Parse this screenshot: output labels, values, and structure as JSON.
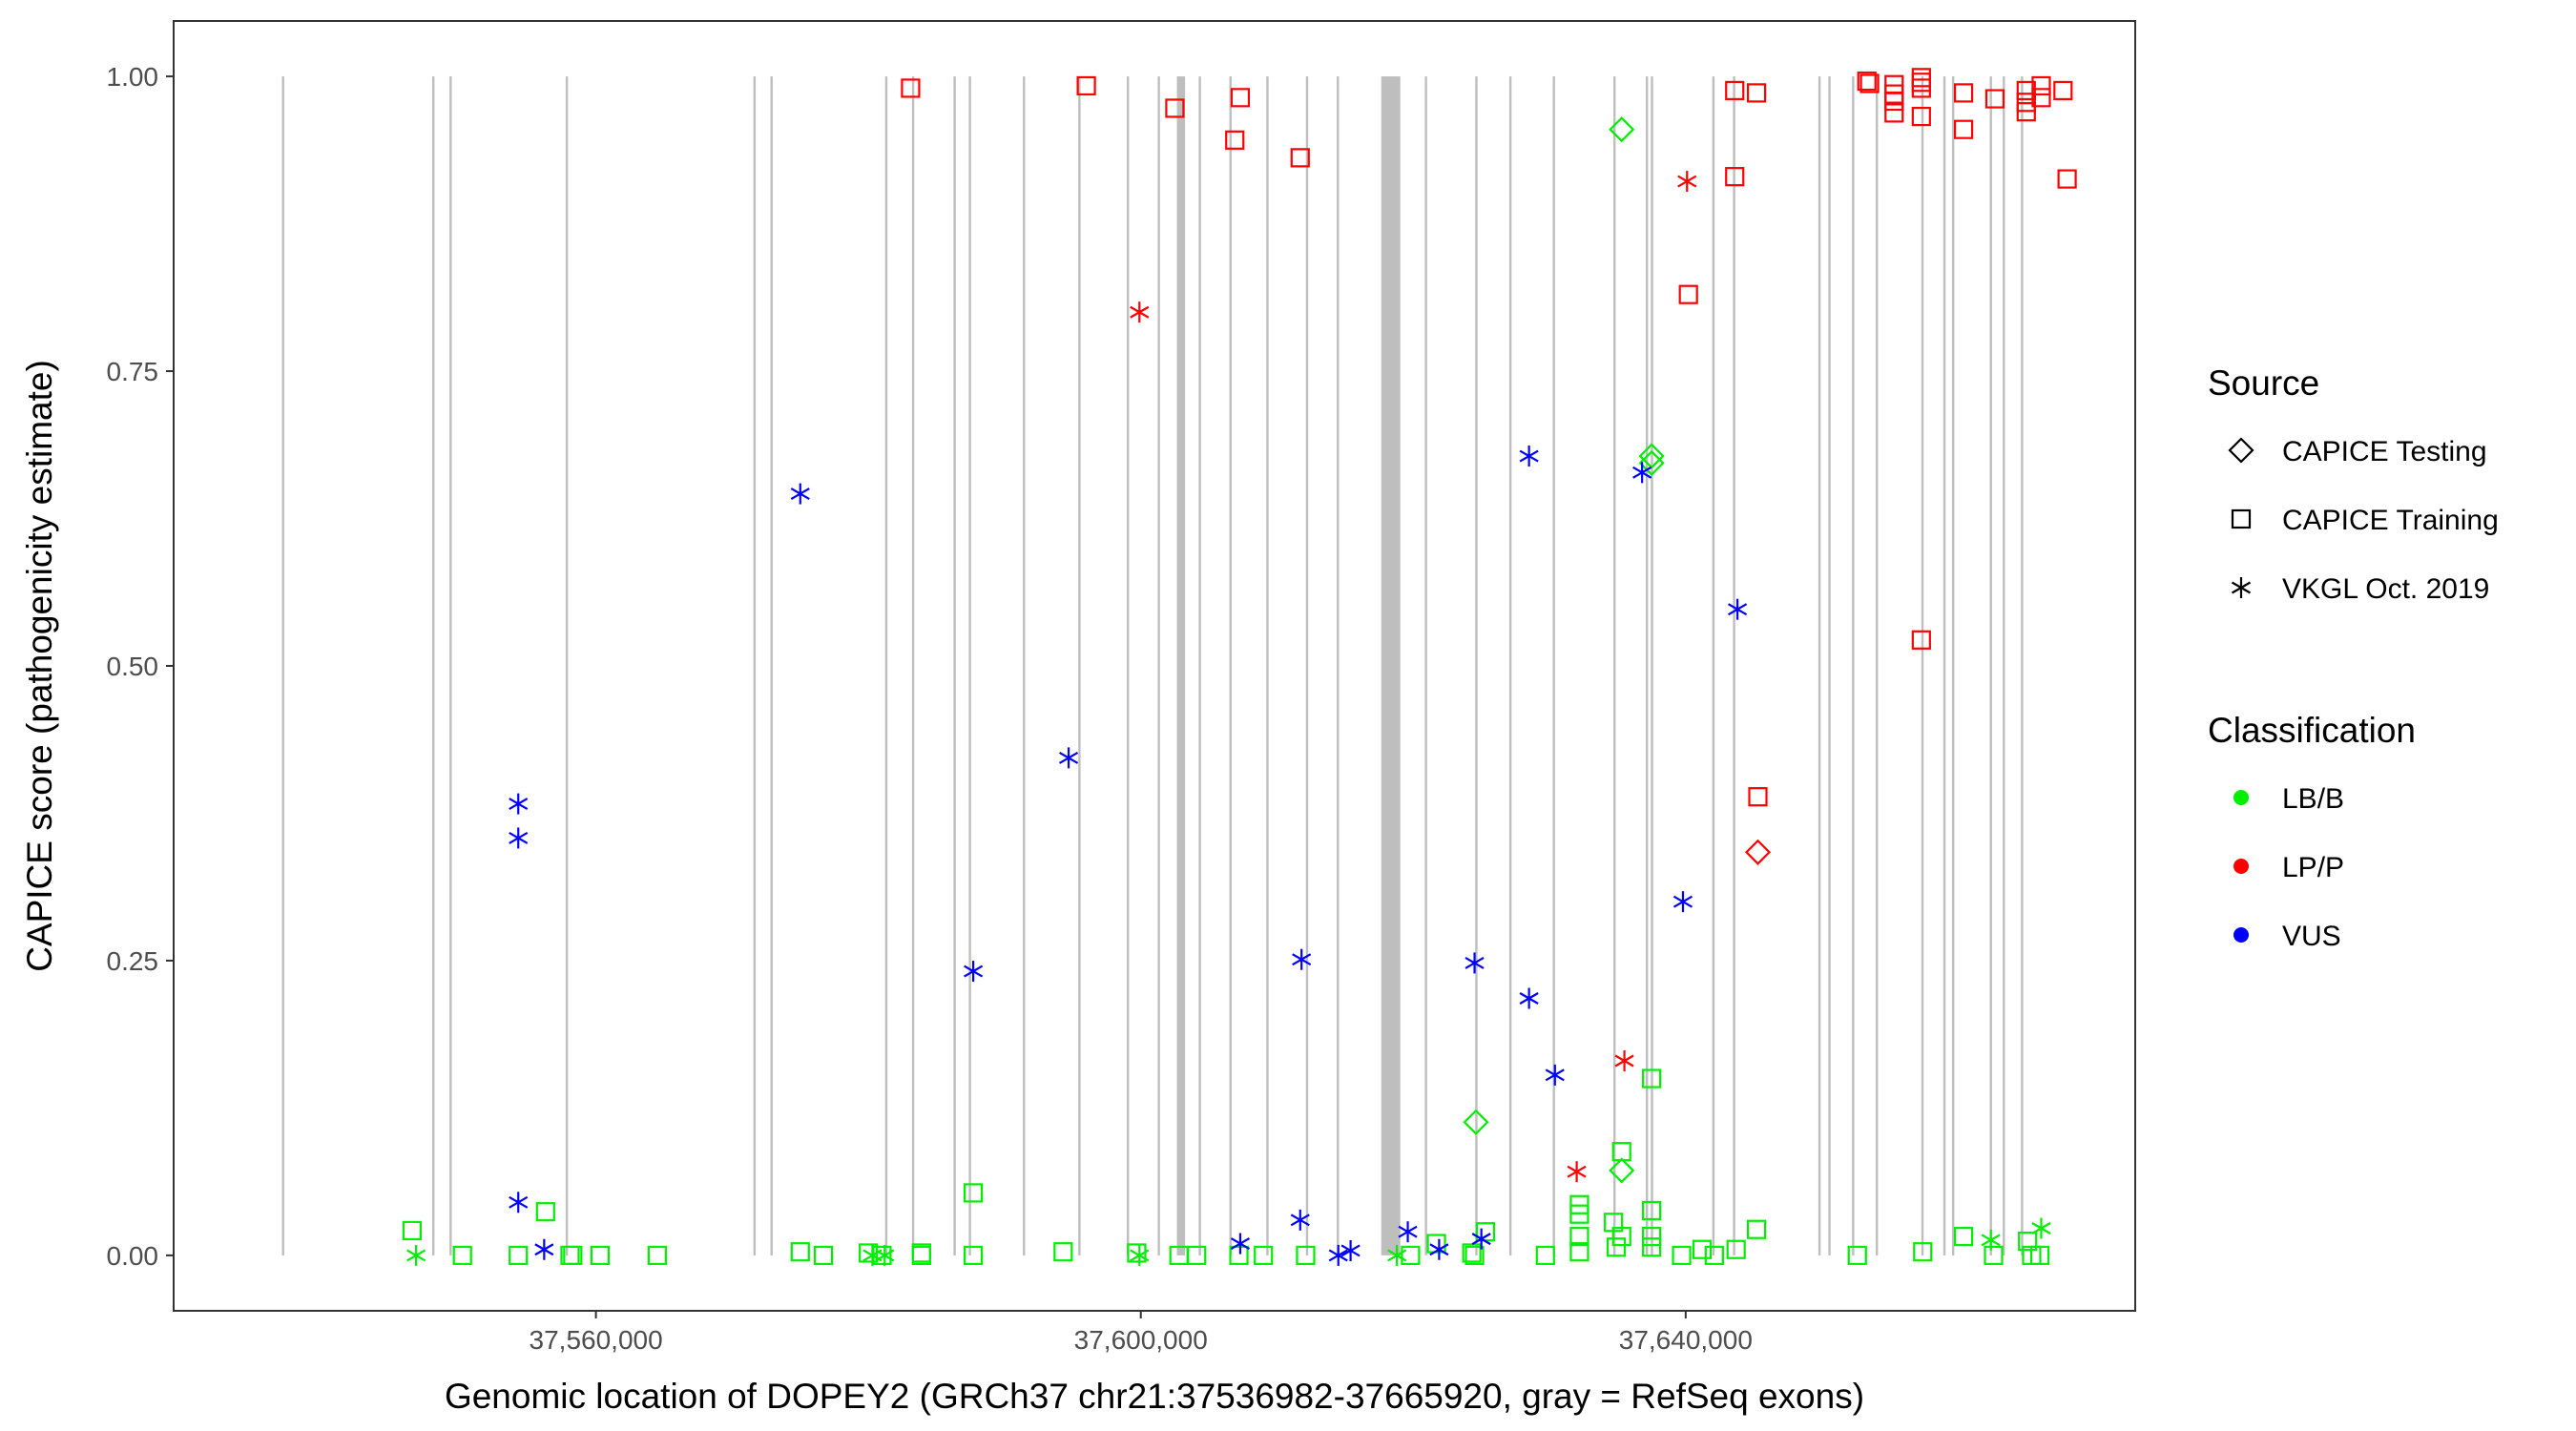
{
  "chart_data": {
    "type": "scatter",
    "xlabel": "Genomic location of DOPEY2 (GRCh37 chr21:37536982-37665920, gray = RefSeq exons)",
    "ylabel": "CAPICE score (pathogenicity estimate)",
    "xlim": [
      37529000,
      37673000
    ],
    "ylim": [
      -0.047,
      1.047
    ],
    "x_ticks": [
      37560000,
      37600000,
      37640000
    ],
    "x_tick_labels": [
      "37,560,000",
      "37,600,000",
      "37,640,000"
    ],
    "y_ticks": [
      0,
      0.25,
      0.5,
      0.75,
      1
    ],
    "y_tick_labels": [
      "0.00",
      "0.25",
      "0.50",
      "0.75",
      "1.00"
    ],
    "grid": false,
    "legend_placement": "right",
    "legend": {
      "source_title": "Source",
      "source_items": [
        {
          "label": "CAPICE Testing",
          "shape": "diamond"
        },
        {
          "label": "CAPICE Training",
          "shape": "square"
        },
        {
          "label": "VKGL Oct. 2019",
          "shape": "asterisk"
        }
      ],
      "classification_title": "Classification",
      "classification_items": [
        {
          "label": "LB/B",
          "color": "#00ee00"
        },
        {
          "label": "LP/P",
          "color": "#ff0000"
        },
        {
          "label": "VUS",
          "color": "#0000ff"
        }
      ]
    },
    "colors": {
      "LB/B": "#00ee00",
      "LP/P": "#ff0000",
      "VUS": "#0000ff",
      "exon": "#bebebe"
    },
    "exons": [
      [
        37536950,
        37537050
      ],
      [
        37547980,
        37548080
      ],
      [
        37549250,
        37549350
      ],
      [
        37557780,
        37557880
      ],
      [
        37571560,
        37571660
      ],
      [
        37572810,
        37572910
      ],
      [
        37581230,
        37581330
      ],
      [
        37583200,
        37583300
      ],
      [
        37586250,
        37586350
      ],
      [
        37587370,
        37587470
      ],
      [
        37591340,
        37591440
      ],
      [
        37595410,
        37595510
      ],
      [
        37598970,
        37599070
      ],
      [
        37601240,
        37601340
      ],
      [
        37602650,
        37603250
      ],
      [
        37604250,
        37604350
      ],
      [
        37606500,
        37606600
      ],
      [
        37609210,
        37609310
      ],
      [
        37612120,
        37612220
      ],
      [
        37614380,
        37614480
      ],
      [
        37617650,
        37619050
      ],
      [
        37620850,
        37620950
      ],
      [
        37624550,
        37624650
      ],
      [
        37627050,
        37627150
      ],
      [
        37630240,
        37630340
      ],
      [
        37634690,
        37634790
      ],
      [
        37637070,
        37637170
      ],
      [
        37637440,
        37637540
      ],
      [
        37641950,
        37642050
      ],
      [
        37643470,
        37643570
      ],
      [
        37649740,
        37649840
      ],
      [
        37650470,
        37650570
      ],
      [
        37652210,
        37652310
      ],
      [
        37653950,
        37654050
      ],
      [
        37657300,
        37657400
      ],
      [
        37658910,
        37659010
      ],
      [
        37659550,
        37659650
      ],
      [
        37662320,
        37662420
      ],
      [
        37663270,
        37663370
      ],
      [
        37664610,
        37664710
      ]
    ],
    "series": [
      {
        "name": "CAPICE Training",
        "shape": "square",
        "points": [
          {
            "x": 37546500,
            "y": 0.021,
            "cls": "LB/B"
          },
          {
            "x": 37550200,
            "y": 0.0,
            "cls": "LB/B"
          },
          {
            "x": 37554300,
            "y": 0.0,
            "cls": "LB/B"
          },
          {
            "x": 37556300,
            "y": 0.037,
            "cls": "LB/B"
          },
          {
            "x": 37558100,
            "y": 0.0,
            "cls": "LB/B"
          },
          {
            "x": 37558300,
            "y": 0.0,
            "cls": "LB/B"
          },
          {
            "x": 37560300,
            "y": 0.0,
            "cls": "LB/B"
          },
          {
            "x": 37564500,
            "y": 0.0,
            "cls": "LB/B"
          },
          {
            "x": 37575000,
            "y": 0.003,
            "cls": "LB/B"
          },
          {
            "x": 37576700,
            "y": 0.0,
            "cls": "LB/B"
          },
          {
            "x": 37580000,
            "y": 0.002,
            "cls": "LB/B"
          },
          {
            "x": 37581000,
            "y": 0.0,
            "cls": "LB/B"
          },
          {
            "x": 37583900,
            "y": 0.002,
            "cls": "LB/B"
          },
          {
            "x": 37583900,
            "y": 0.0,
            "cls": "LB/B"
          },
          {
            "x": 37587700,
            "y": 0.053,
            "cls": "LB/B"
          },
          {
            "x": 37587700,
            "y": 0.0,
            "cls": "LB/B"
          },
          {
            "x": 37594300,
            "y": 0.003,
            "cls": "LB/B"
          },
          {
            "x": 37599700,
            "y": 0.002,
            "cls": "LB/B"
          },
          {
            "x": 37602800,
            "y": 0.0,
            "cls": "LB/B"
          },
          {
            "x": 37604100,
            "y": 0.0,
            "cls": "LB/B"
          },
          {
            "x": 37607200,
            "y": 0.0,
            "cls": "LB/B"
          },
          {
            "x": 37609000,
            "y": 0.0,
            "cls": "LB/B"
          },
          {
            "x": 37612100,
            "y": 0.0,
            "cls": "LB/B"
          },
          {
            "x": 37619800,
            "y": 0.0,
            "cls": "LB/B"
          },
          {
            "x": 37621700,
            "y": 0.01,
            "cls": "LB/B"
          },
          {
            "x": 37624300,
            "y": 0.002,
            "cls": "LB/B"
          },
          {
            "x": 37624500,
            "y": 0.0,
            "cls": "LB/B"
          },
          {
            "x": 37625300,
            "y": 0.02,
            "cls": "LB/B"
          },
          {
            "x": 37629700,
            "y": 0.0,
            "cls": "LB/B"
          },
          {
            "x": 37632200,
            "y": 0.043,
            "cls": "LB/B"
          },
          {
            "x": 37632200,
            "y": 0.035,
            "cls": "LB/B"
          },
          {
            "x": 37632200,
            "y": 0.016,
            "cls": "LB/B"
          },
          {
            "x": 37632200,
            "y": 0.003,
            "cls": "LB/B"
          },
          {
            "x": 37634700,
            "y": 0.028,
            "cls": "LB/B"
          },
          {
            "x": 37635300,
            "y": 0.088,
            "cls": "LB/B"
          },
          {
            "x": 37635300,
            "y": 0.016,
            "cls": "LB/B"
          },
          {
            "x": 37634900,
            "y": 0.007,
            "cls": "LB/B"
          },
          {
            "x": 37637500,
            "y": 0.15,
            "cls": "LB/B"
          },
          {
            "x": 37637500,
            "y": 0.038,
            "cls": "LB/B"
          },
          {
            "x": 37637500,
            "y": 0.016,
            "cls": "LB/B"
          },
          {
            "x": 37637500,
            "y": 0.007,
            "cls": "LB/B"
          },
          {
            "x": 37639700,
            "y": 0.0,
            "cls": "LB/B"
          },
          {
            "x": 37641200,
            "y": 0.005,
            "cls": "LB/B"
          },
          {
            "x": 37642100,
            "y": 0.0,
            "cls": "LB/B"
          },
          {
            "x": 37643700,
            "y": 0.005,
            "cls": "LB/B"
          },
          {
            "x": 37645200,
            "y": 0.022,
            "cls": "LB/B"
          },
          {
            "x": 37652600,
            "y": 0.0,
            "cls": "LB/B"
          },
          {
            "x": 37657400,
            "y": 0.003,
            "cls": "LB/B"
          },
          {
            "x": 37660400,
            "y": 0.016,
            "cls": "LB/B"
          },
          {
            "x": 37662600,
            "y": 0.0,
            "cls": "LB/B"
          },
          {
            "x": 37665100,
            "y": 0.012,
            "cls": "LB/B"
          },
          {
            "x": 37665400,
            "y": 0.0,
            "cls": "LB/B"
          },
          {
            "x": 37666000,
            "y": 0.0,
            "cls": "LB/B"
          },
          {
            "x": 37583100,
            "y": 0.99,
            "cls": "LP/P"
          },
          {
            "x": 37596000,
            "y": 0.992,
            "cls": "LP/P"
          },
          {
            "x": 37602500,
            "y": 0.973,
            "cls": "LP/P"
          },
          {
            "x": 37606900,
            "y": 0.946,
            "cls": "LP/P"
          },
          {
            "x": 37607300,
            "y": 0.982,
            "cls": "LP/P"
          },
          {
            "x": 37611700,
            "y": 0.931,
            "cls": "LP/P"
          },
          {
            "x": 37640200,
            "y": 0.815,
            "cls": "LP/P"
          },
          {
            "x": 37643600,
            "y": 0.915,
            "cls": "LP/P"
          },
          {
            "x": 37643600,
            "y": 0.988,
            "cls": "LP/P"
          },
          {
            "x": 37645200,
            "y": 0.986,
            "cls": "LP/P"
          },
          {
            "x": 37645300,
            "y": 0.389,
            "cls": "LP/P"
          },
          {
            "x": 37653300,
            "y": 0.996,
            "cls": "LP/P"
          },
          {
            "x": 37653500,
            "y": 0.994,
            "cls": "LP/P"
          },
          {
            "x": 37655300,
            "y": 0.993,
            "cls": "LP/P"
          },
          {
            "x": 37655300,
            "y": 0.985,
            "cls": "LP/P"
          },
          {
            "x": 37655300,
            "y": 0.979,
            "cls": "LP/P"
          },
          {
            "x": 37655300,
            "y": 0.969,
            "cls": "LP/P"
          },
          {
            "x": 37657300,
            "y": 0.999,
            "cls": "LP/P"
          },
          {
            "x": 37657300,
            "y": 0.995,
            "cls": "LP/P"
          },
          {
            "x": 37657300,
            "y": 0.99,
            "cls": "LP/P"
          },
          {
            "x": 37657300,
            "y": 0.966,
            "cls": "LP/P"
          },
          {
            "x": 37657300,
            "y": 0.522,
            "cls": "LP/P"
          },
          {
            "x": 37660400,
            "y": 0.986,
            "cls": "LP/P"
          },
          {
            "x": 37660400,
            "y": 0.955,
            "cls": "LP/P"
          },
          {
            "x": 37662700,
            "y": 0.981,
            "cls": "LP/P"
          },
          {
            "x": 37665000,
            "y": 0.988,
            "cls": "LP/P"
          },
          {
            "x": 37665000,
            "y": 0.978,
            "cls": "LP/P"
          },
          {
            "x": 37665000,
            "y": 0.97,
            "cls": "LP/P"
          },
          {
            "x": 37666100,
            "y": 0.992,
            "cls": "LP/P"
          },
          {
            "x": 37666100,
            "y": 0.982,
            "cls": "LP/P"
          },
          {
            "x": 37667700,
            "y": 0.988,
            "cls": "LP/P"
          },
          {
            "x": 37668000,
            "y": 0.913,
            "cls": "LP/P"
          }
        ]
      },
      {
        "name": "CAPICE Testing",
        "shape": "diamond",
        "points": [
          {
            "x": 37624600,
            "y": 0.113,
            "cls": "LB/B"
          },
          {
            "x": 37635300,
            "y": 0.955,
            "cls": "LB/B"
          },
          {
            "x": 37635300,
            "y": 0.072,
            "cls": "LB/B"
          },
          {
            "x": 37637500,
            "y": 0.678,
            "cls": "LB/B"
          },
          {
            "x": 37637500,
            "y": 0.672,
            "cls": "LB/B"
          },
          {
            "x": 37645300,
            "y": 0.342,
            "cls": "LP/P"
          }
        ]
      },
      {
        "name": "VKGL Oct. 2019",
        "shape": "asterisk",
        "points": [
          {
            "x": 37546800,
            "y": 0.0,
            "cls": "LB/B"
          },
          {
            "x": 37580300,
            "y": 0.0,
            "cls": "LB/B"
          },
          {
            "x": 37581200,
            "y": 0.0,
            "cls": "LB/B"
          },
          {
            "x": 37599900,
            "y": 0.0,
            "cls": "LB/B"
          },
          {
            "x": 37618800,
            "y": 0.0,
            "cls": "LB/B"
          },
          {
            "x": 37662400,
            "y": 0.013,
            "cls": "LB/B"
          },
          {
            "x": 37666100,
            "y": 0.023,
            "cls": "LB/B"
          },
          {
            "x": 37599900,
            "y": 0.8,
            "cls": "LP/P"
          },
          {
            "x": 37632000,
            "y": 0.071,
            "cls": "LP/P"
          },
          {
            "x": 37635500,
            "y": 0.165,
            "cls": "LP/P"
          },
          {
            "x": 37640100,
            "y": 0.911,
            "cls": "LP/P"
          },
          {
            "x": 37554300,
            "y": 0.383,
            "cls": "VUS"
          },
          {
            "x": 37554300,
            "y": 0.354,
            "cls": "VUS"
          },
          {
            "x": 37554300,
            "y": 0.045,
            "cls": "VUS"
          },
          {
            "x": 37556200,
            "y": 0.005,
            "cls": "VUS"
          },
          {
            "x": 37575000,
            "y": 0.646,
            "cls": "VUS"
          },
          {
            "x": 37587700,
            "y": 0.241,
            "cls": "VUS"
          },
          {
            "x": 37594700,
            "y": 0.422,
            "cls": "VUS"
          },
          {
            "x": 37607300,
            "y": 0.01,
            "cls": "VUS"
          },
          {
            "x": 37611800,
            "y": 0.251,
            "cls": "VUS"
          },
          {
            "x": 37611700,
            "y": 0.03,
            "cls": "VUS"
          },
          {
            "x": 37614500,
            "y": 0.0,
            "cls": "VUS"
          },
          {
            "x": 37615400,
            "y": 0.004,
            "cls": "VUS"
          },
          {
            "x": 37619600,
            "y": 0.02,
            "cls": "VUS"
          },
          {
            "x": 37621900,
            "y": 0.005,
            "cls": "VUS"
          },
          {
            "x": 37624500,
            "y": 0.248,
            "cls": "VUS"
          },
          {
            "x": 37625000,
            "y": 0.014,
            "cls": "VUS"
          },
          {
            "x": 37628500,
            "y": 0.678,
            "cls": "VUS"
          },
          {
            "x": 37628500,
            "y": 0.218,
            "cls": "VUS"
          },
          {
            "x": 37630400,
            "y": 0.153,
            "cls": "VUS"
          },
          {
            "x": 37636800,
            "y": 0.664,
            "cls": "VUS"
          },
          {
            "x": 37639800,
            "y": 0.3,
            "cls": "VUS"
          },
          {
            "x": 37643800,
            "y": 0.548,
            "cls": "VUS"
          }
        ]
      }
    ]
  }
}
